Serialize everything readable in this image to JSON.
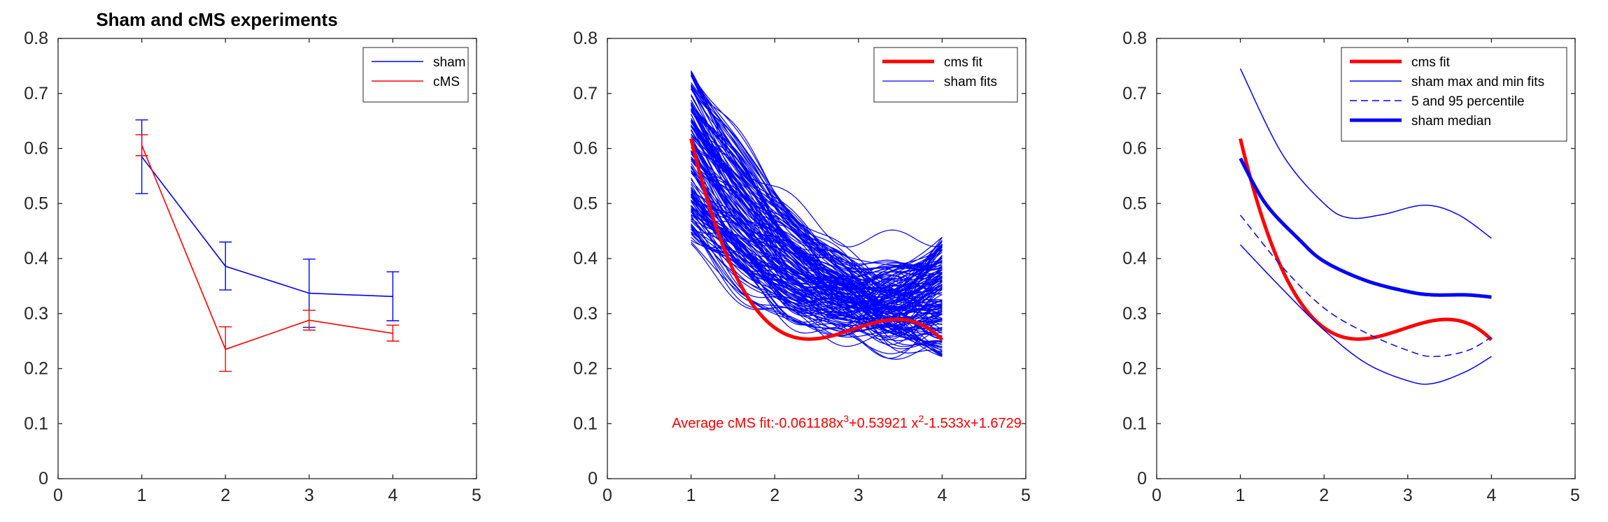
{
  "figure": {
    "tick_color": "#262626",
    "axis_color": "#262626"
  },
  "chart_data": [
    {
      "type": "line",
      "title": "Sham and cMS experiments",
      "xlim": [
        0,
        5
      ],
      "ylim": [
        0,
        0.8
      ],
      "xticks": [
        "0",
        "1",
        "2",
        "3",
        "4",
        "5"
      ],
      "yticks": [
        "0",
        "0.1",
        "0.2",
        "0.3",
        "0.4",
        "0.5",
        "0.6",
        "0.7",
        "0.8"
      ],
      "legend_position": "top-right",
      "series": [
        {
          "name": "sham",
          "color": "#0000ff",
          "width": 1.6,
          "points": [
            [
              1,
              0.585
            ],
            [
              2,
              0.386
            ],
            [
              3,
              0.337
            ],
            [
              4,
              0.331
            ]
          ],
          "error_bars": [
            [
              1,
              0.518,
              0.652
            ],
            [
              2,
              0.343,
              0.43
            ],
            [
              3,
              0.275,
              0.399
            ],
            [
              4,
              0.287,
              0.376
            ]
          ]
        },
        {
          "name": "cMS",
          "color": "#ff0000",
          "width": 1.6,
          "points": [
            [
              1,
              0.606
            ],
            [
              2,
              0.235
            ],
            [
              3,
              0.288
            ],
            [
              4,
              0.264
            ]
          ],
          "error_bars": [
            [
              1,
              0.587,
              0.625
            ],
            [
              2,
              0.195,
              0.276
            ],
            [
              3,
              0.27,
              0.306
            ],
            [
              4,
              0.25,
              0.279
            ]
          ]
        }
      ]
    },
    {
      "type": "line",
      "title": "",
      "xlim": [
        0,
        5
      ],
      "ylim": [
        0,
        0.8
      ],
      "xticks": [
        "0",
        "1",
        "2",
        "3",
        "4",
        "5"
      ],
      "yticks": [
        "0",
        "0.1",
        "0.2",
        "0.3",
        "0.4",
        "0.5",
        "0.6",
        "0.7",
        "0.8"
      ],
      "legend_position": "top-right",
      "x_range": [
        1,
        4
      ],
      "series": [
        {
          "name": "cms fit",
          "color": "#ff0000",
          "width": 5,
          "cubic": [
            -0.061188,
            0.53921,
            -1.533,
            1.6729
          ]
        },
        {
          "name": "sham fits",
          "color": "#0000ff",
          "width": 1.2,
          "band": {
            "start": [
              0.425,
              0.745
            ],
            "mid": [
              0.19,
              0.47
            ],
            "end": [
              0.22,
              0.44
            ],
            "count": 160
          }
        }
      ],
      "annotation": {
        "color": "#ff0000",
        "prefix": "Average cMS fit:-0.061188x",
        "sup1": "3",
        "middle": "+0.53921 x",
        "sup2": "2",
        "suffix": "-1.533x+1.6729"
      }
    },
    {
      "type": "line",
      "title": "",
      "xlim": [
        0,
        5
      ],
      "ylim": [
        0,
        0.8
      ],
      "xticks": [
        "0",
        "1",
        "2",
        "3",
        "4",
        "5"
      ],
      "yticks": [
        "0",
        "0.1",
        "0.2",
        "0.3",
        "0.4",
        "0.5",
        "0.6",
        "0.7",
        "0.8"
      ],
      "legend_position": "top-right",
      "x_range": [
        1,
        4
      ],
      "series": [
        {
          "name": "cms fit",
          "color": "#ff0000",
          "width": 5,
          "style": "solid",
          "cubic": [
            -0.061188,
            0.53921,
            -1.533,
            1.6729
          ]
        },
        {
          "name": "sham max and min fits",
          "color": "#0000ff",
          "width": 1.5,
          "style": "solid",
          "curves": [
            [
              [
                1,
                0.745
              ],
              [
                1.5,
                0.59
              ],
              [
                2,
                0.5
              ],
              [
                2.3,
                0.474
              ],
              [
                2.7,
                0.48
              ],
              [
                3.2,
                0.497
              ],
              [
                3.6,
                0.48
              ],
              [
                4,
                0.437
              ]
            ],
            [
              [
                1,
                0.425
              ],
              [
                1.5,
                0.345
              ],
              [
                2,
                0.27
              ],
              [
                2.5,
                0.21
              ],
              [
                3,
                0.178
              ],
              [
                3.3,
                0.173
              ],
              [
                3.7,
                0.195
              ],
              [
                4,
                0.222
              ]
            ]
          ]
        },
        {
          "name": "5 and 95 percentile",
          "color": "#0000ff",
          "width": 1.5,
          "style": "dashed",
          "curves": [
            [
              [
                1,
                0.479
              ],
              [
                1.5,
                0.385
              ],
              [
                2,
                0.31
              ],
              [
                2.5,
                0.265
              ],
              [
                3,
                0.233
              ],
              [
                3.3,
                0.222
              ],
              [
                3.7,
                0.232
              ],
              [
                4,
                0.257
              ]
            ]
          ]
        },
        {
          "name": "sham median",
          "color": "#0000ff",
          "width": 5,
          "style": "solid",
          "curves": [
            [
              [
                1,
                0.582
              ],
              [
                1.3,
                0.5
              ],
              [
                1.7,
                0.435
              ],
              [
                2,
                0.395
              ],
              [
                2.5,
                0.36
              ],
              [
                3,
                0.34
              ],
              [
                3.3,
                0.334
              ],
              [
                3.7,
                0.334
              ],
              [
                4,
                0.33
              ]
            ]
          ]
        }
      ]
    }
  ]
}
